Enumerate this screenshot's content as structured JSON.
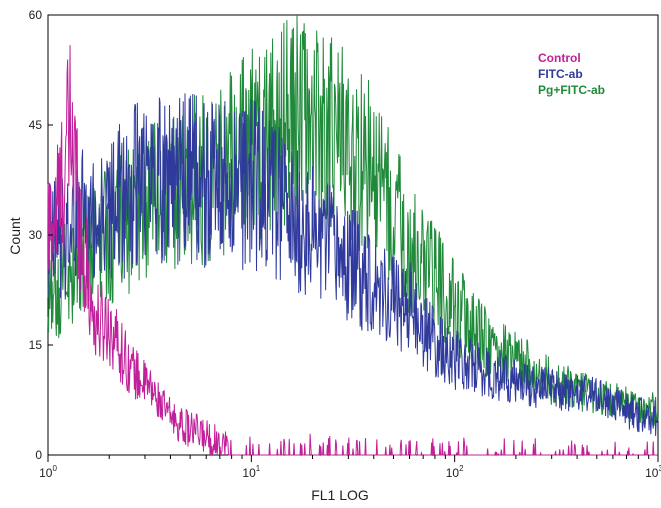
{
  "chart_data": {
    "type": "line",
    "xlabel": "FL1 LOG",
    "ylabel": "Count",
    "xscale": "log",
    "xlim": [
      1,
      1000
    ],
    "ylim": [
      0,
      60
    ],
    "x_ticks": [
      {
        "base": "10",
        "exp": "0"
      },
      {
        "base": "10",
        "exp": "1"
      },
      {
        "base": "10",
        "exp": "2"
      },
      {
        "base": "10",
        "exp": "3"
      }
    ],
    "y_ticks": [
      "0",
      "15",
      "30",
      "45",
      "60"
    ],
    "grid": false,
    "legend_position": "top-right",
    "series": [
      {
        "name": "Control",
        "color": "#c0209a",
        "x": [
          1.0,
          1.15,
          1.3,
          1.5,
          1.7,
          2.0,
          2.3,
          2.7,
          3.2,
          3.8,
          4.5,
          5.5,
          6.5,
          8.0,
          10,
          15,
          20,
          30,
          50,
          100,
          200,
          400,
          1000
        ],
        "y": [
          30,
          35,
          45,
          27,
          18,
          18,
          14,
          11,
          9,
          6,
          4,
          3,
          2,
          1,
          0.5,
          0.5,
          0.8,
          0.3,
          0.3,
          0.2,
          0.1,
          0.1,
          0
        ]
      },
      {
        "name": "FITC-ab",
        "color": "#2f3a9c",
        "x": [
          1.0,
          1.2,
          1.5,
          2.0,
          2.5,
          3.0,
          4.0,
          5.0,
          6.0,
          8.0,
          10,
          13,
          16,
          20,
          25,
          30,
          40,
          50,
          60,
          80,
          100,
          150,
          200,
          300,
          500,
          700,
          1000
        ],
        "y": [
          28,
          30,
          32,
          33,
          36,
          38,
          38,
          38,
          37,
          37,
          37,
          35,
          32,
          30,
          28,
          26,
          24,
          21,
          20,
          15,
          13,
          11,
          10,
          9,
          8,
          6,
          5
        ]
      },
      {
        "name": "Pg+FITC-ab",
        "color": "#1f8a3a",
        "x": [
          1.0,
          1.2,
          1.5,
          2.0,
          2.5,
          3.0,
          4.0,
          5.0,
          6.0,
          8.0,
          10,
          13,
          16,
          20,
          25,
          30,
          40,
          50,
          60,
          80,
          100,
          150,
          200,
          300,
          500,
          700,
          1000
        ],
        "y": [
          20,
          24,
          28,
          30,
          32,
          34,
          35,
          37,
          38,
          40,
          42,
          44,
          46,
          45,
          44,
          42,
          38,
          33,
          28,
          24,
          20,
          15,
          13,
          10,
          8,
          7,
          6
        ]
      }
    ]
  }
}
